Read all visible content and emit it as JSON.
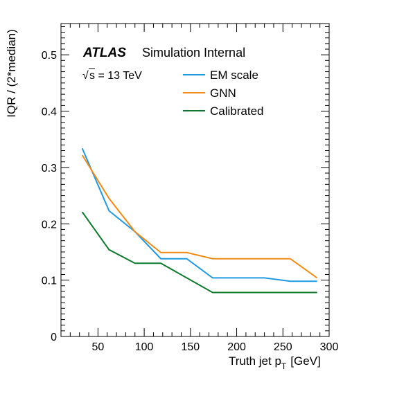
{
  "chart_data": {
    "type": "line",
    "title": "",
    "xlabel_main": "Truth jet p",
    "xlabel_sub": "T",
    "xlabel_unit": "[GeV]",
    "ylabel": "IQR / (2*median)",
    "xlim": [
      10,
      300
    ],
    "ylim": [
      0,
      0.5555
    ],
    "x_ticks": [
      50,
      100,
      150,
      200,
      250,
      300
    ],
    "y_ticks": [
      0,
      0.1,
      0.2,
      0.3,
      0.4,
      0.5
    ],
    "y_tick_labels": [
      "0",
      "0.1",
      "0.2",
      "0.3",
      "0.4",
      "0.5"
    ],
    "x": [
      33,
      62,
      90,
      118,
      146,
      174,
      202,
      230,
      258,
      287
    ],
    "series": [
      {
        "name": "EM scale",
        "color": "#1f9ae0",
        "values": [
          0.334,
          0.223,
          0.186,
          0.138,
          0.138,
          0.104,
          0.104,
          0.104,
          0.098,
          0.098
        ]
      },
      {
        "name": "GNN",
        "color": "#f08c16",
        "values": [
          0.322,
          0.245,
          0.186,
          0.149,
          0.149,
          0.138,
          0.138,
          0.138,
          0.138,
          0.104
        ]
      },
      {
        "name": "Calibrated",
        "color": "#0e7a2e",
        "values": [
          0.221,
          0.154,
          0.13,
          0.13,
          0.104,
          0.078,
          0.078,
          0.078,
          0.078,
          0.078
        ]
      }
    ],
    "grid": false,
    "legend_position": "top-right",
    "annotation": {
      "experiment": "ATLAS",
      "label": "Simulation Internal",
      "energy": "s = 13 TeV",
      "sqrt_symbol": "√"
    }
  }
}
